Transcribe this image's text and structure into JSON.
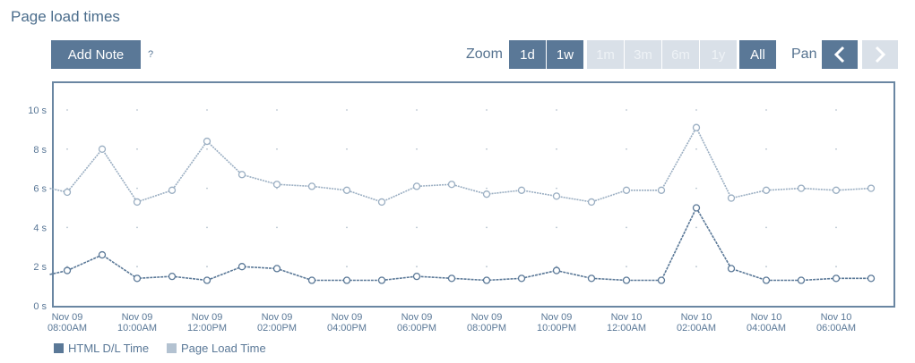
{
  "title": "Page load times",
  "toolbar": {
    "add_note_label": "Add Note",
    "help_label": "?",
    "zoom_label": "Zoom",
    "zoom_options": [
      "1d",
      "1w",
      "1m",
      "3m",
      "6m",
      "1y",
      "All"
    ],
    "zoom_enabled": [
      true,
      true,
      false,
      false,
      false,
      false,
      true
    ],
    "zoom_selected": "All",
    "pan_label": "Pan",
    "pan_prev_icon": "chevron-left-icon",
    "pan_next_icon": "chevron-right-icon"
  },
  "chart_data": {
    "type": "line",
    "x_ticks": [
      [
        "Nov 09",
        "08:00AM"
      ],
      [
        "Nov 09",
        "10:00AM"
      ],
      [
        "Nov 09",
        "12:00PM"
      ],
      [
        "Nov 09",
        "02:00PM"
      ],
      [
        "Nov 09",
        "04:00PM"
      ],
      [
        "Nov 09",
        "06:00PM"
      ],
      [
        "Nov 09",
        "08:00PM"
      ],
      [
        "Nov 09",
        "10:00PM"
      ],
      [
        "Nov 10",
        "12:00AM"
      ],
      [
        "Nov 10",
        "02:00AM"
      ],
      [
        "Nov 10",
        "04:00AM"
      ],
      [
        "Nov 10",
        "06:00AM"
      ]
    ],
    "y_ticks": [
      "0 s",
      "2 s",
      "4 s",
      "6 s",
      "8 s",
      "10 s"
    ],
    "ylim": [
      0,
      11
    ],
    "grid": true,
    "legend_position": "bottom-left",
    "series": [
      {
        "name": "HTML D/L Time",
        "color": "#5a7897",
        "points": [
          [
            7.5,
            1.6
          ],
          [
            8.0,
            1.8
          ],
          [
            9.0,
            2.6
          ],
          [
            10.0,
            1.4
          ],
          [
            11.0,
            1.5
          ],
          [
            12.0,
            1.3
          ],
          [
            13.0,
            2.0
          ],
          [
            14.0,
            1.9
          ],
          [
            15.0,
            1.3
          ],
          [
            16.0,
            1.3
          ],
          [
            17.0,
            1.3
          ],
          [
            18.0,
            1.5
          ],
          [
            19.0,
            1.4
          ],
          [
            20.0,
            1.3
          ],
          [
            21.0,
            1.4
          ],
          [
            22.0,
            1.8
          ],
          [
            23.0,
            1.4
          ],
          [
            24.0,
            1.3
          ],
          [
            25.0,
            1.3
          ],
          [
            26.0,
            5.0
          ],
          [
            27.0,
            1.9
          ],
          [
            28.0,
            1.3
          ],
          [
            29.0,
            1.3
          ],
          [
            30.0,
            1.4
          ],
          [
            31.0,
            1.4
          ]
        ]
      },
      {
        "name": "Page Load Time",
        "color": "#9aaec2",
        "points": [
          [
            7.5,
            6.0
          ],
          [
            8.0,
            5.8
          ],
          [
            9.0,
            8.0
          ],
          [
            10.0,
            5.3
          ],
          [
            11.0,
            5.9
          ],
          [
            12.0,
            8.4
          ],
          [
            13.0,
            6.7
          ],
          [
            14.0,
            6.2
          ],
          [
            15.0,
            6.1
          ],
          [
            16.0,
            5.9
          ],
          [
            17.0,
            5.3
          ],
          [
            18.0,
            6.1
          ],
          [
            19.0,
            6.2
          ],
          [
            20.0,
            5.7
          ],
          [
            21.0,
            5.9
          ],
          [
            22.0,
            5.6
          ],
          [
            23.0,
            5.3
          ],
          [
            24.0,
            5.9
          ],
          [
            25.0,
            5.9
          ],
          [
            26.0,
            9.1
          ],
          [
            27.0,
            5.5
          ],
          [
            28.0,
            5.9
          ],
          [
            29.0,
            6.0
          ],
          [
            30.0,
            5.9
          ],
          [
            31.0,
            6.0
          ]
        ]
      }
    ]
  }
}
